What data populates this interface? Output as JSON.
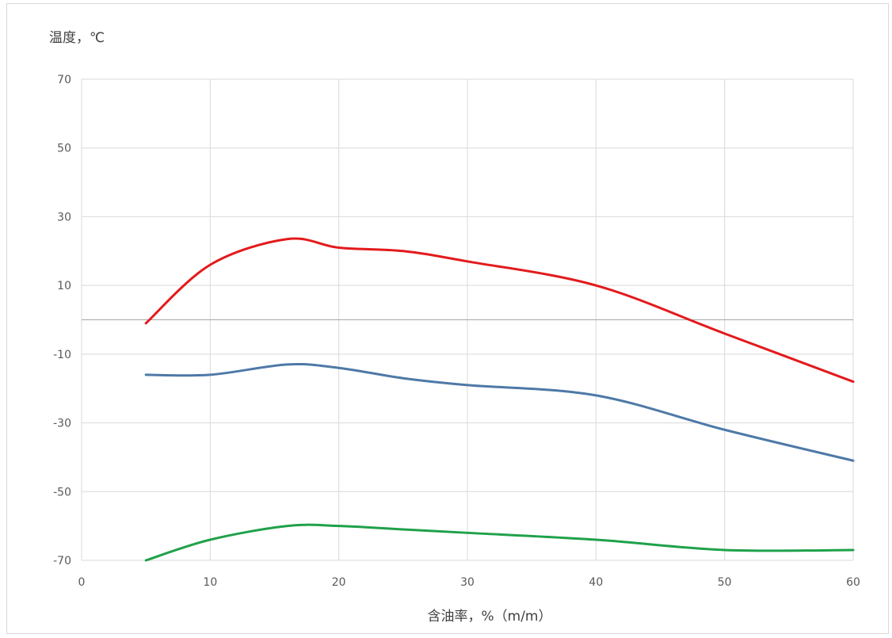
{
  "chart_data": {
    "type": "line",
    "ylabel": "温度，℃",
    "xlabel": "含油率，%（m/m）",
    "xlim": [
      0,
      60
    ],
    "ylim": [
      -70,
      70
    ],
    "x_ticks": [
      0,
      10,
      20,
      30,
      40,
      50,
      60
    ],
    "y_ticks": [
      70,
      50,
      30,
      10,
      -10,
      -30,
      -50,
      -70
    ],
    "grid": true,
    "legend": "none",
    "series": [
      {
        "color": "#e31a1c",
        "x": [
          5,
          10,
          16,
          20,
          25,
          30,
          40,
          50,
          60
        ],
        "values": [
          -1,
          16,
          23.5,
          21,
          20,
          17,
          10,
          -4,
          -18
        ]
      },
      {
        "color": "#4e79a7",
        "x": [
          5,
          10,
          16,
          20,
          25,
          30,
          40,
          50,
          60
        ],
        "values": [
          -16,
          -16,
          -13,
          -14,
          -17,
          -19,
          -22,
          -32,
          -41
        ]
      },
      {
        "color": "#1fa14a",
        "x": [
          5,
          10,
          16,
          20,
          25,
          30,
          40,
          50,
          60
        ],
        "values": [
          -70,
          -64,
          -60,
          -60,
          -61,
          -62,
          -64,
          -67,
          -67
        ]
      }
    ]
  }
}
